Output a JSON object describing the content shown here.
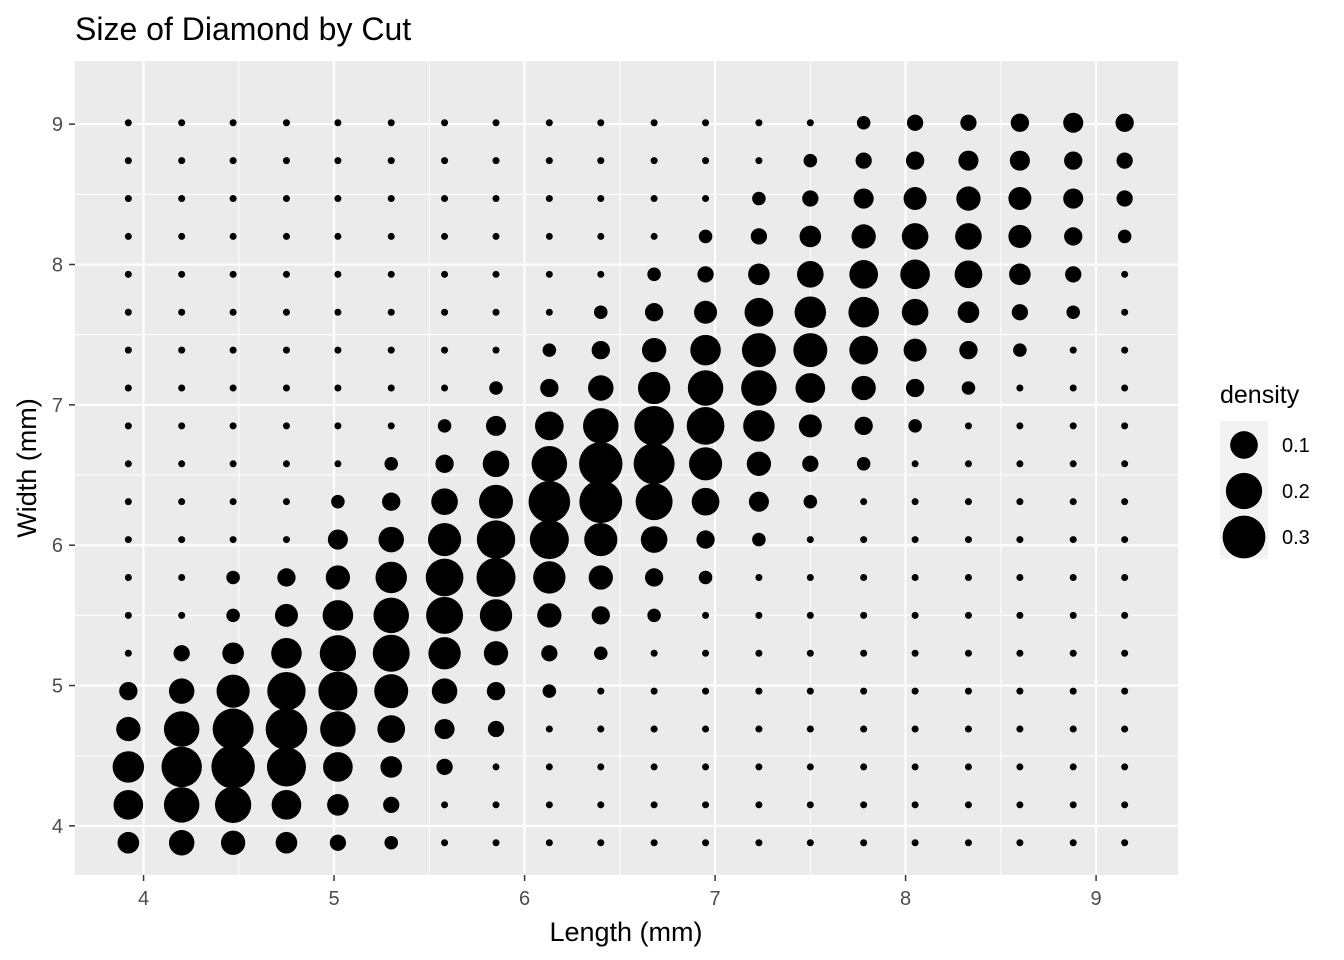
{
  "chart_data": {
    "type": "scatter",
    "title": "Size of Diamond by Cut",
    "xlabel": "Length (mm)",
    "ylabel": "Width (mm)",
    "xlim": [
      3.64,
      9.43
    ],
    "ylim": [
      3.65,
      9.45
    ],
    "x_ticks": [
      4,
      5,
      6,
      7,
      8,
      9
    ],
    "y_ticks": [
      4,
      5,
      6,
      7,
      8,
      9
    ],
    "grid": true,
    "legend": {
      "title": "density",
      "position": "right",
      "entries": [
        {
          "label": "0.1",
          "value": 0.1
        },
        {
          "label": "0.2",
          "value": 0.2
        },
        {
          "label": "0.3",
          "value": 0.3
        }
      ]
    },
    "point_color": "#000000",
    "panel_color": "#ebebeb",
    "x_values": [
      3.92,
      4.2,
      4.47,
      4.75,
      5.02,
      5.3,
      5.58,
      5.85,
      6.13,
      6.4,
      6.68,
      6.95,
      7.23,
      7.5,
      7.78,
      8.05,
      8.33,
      8.6,
      8.88,
      9.15
    ],
    "y_values": [
      3.88,
      4.15,
      4.42,
      4.69,
      4.96,
      5.23,
      5.5,
      5.77,
      6.04,
      6.31,
      6.58,
      6.85,
      7.12,
      7.39,
      7.66,
      7.93,
      8.2,
      8.47,
      8.74,
      9.01
    ],
    "density_grid_note_rows_are_y_values_from_lowest": true,
    "density": [
      [
        0.05,
        0.08,
        0.07,
        0.05,
        0.02,
        0.01,
        0,
        0,
        0,
        0,
        0,
        0,
        0,
        0,
        0,
        0,
        0,
        0,
        0,
        0
      ],
      [
        0.12,
        0.19,
        0.2,
        0.12,
        0.05,
        0.02,
        0,
        0,
        0,
        0,
        0,
        0,
        0,
        0,
        0,
        0,
        0,
        0,
        0,
        0
      ],
      [
        0.14,
        0.26,
        0.31,
        0.24,
        0.12,
        0.05,
        0.02,
        0,
        0,
        0,
        0,
        0,
        0,
        0,
        0,
        0,
        0,
        0,
        0,
        0
      ],
      [
        0.07,
        0.19,
        0.27,
        0.28,
        0.19,
        0.1,
        0.04,
        0.02,
        0,
        0,
        0,
        0,
        0,
        0,
        0,
        0,
        0,
        0,
        0,
        0
      ],
      [
        0.03,
        0.08,
        0.16,
        0.23,
        0.24,
        0.17,
        0.08,
        0.03,
        0.01,
        0,
        0,
        0,
        0,
        0,
        0,
        0,
        0,
        0,
        0,
        0
      ],
      [
        0,
        0.02,
        0.05,
        0.13,
        0.2,
        0.21,
        0.15,
        0.07,
        0.02,
        0.01,
        0,
        0,
        0,
        0,
        0,
        0,
        0,
        0,
        0,
        0
      ],
      [
        0,
        0,
        0.01,
        0.06,
        0.13,
        0.19,
        0.21,
        0.15,
        0.07,
        0.03,
        0.01,
        0,
        0,
        0,
        0,
        0,
        0,
        0,
        0,
        0
      ],
      [
        0,
        0,
        0.01,
        0.03,
        0.07,
        0.14,
        0.22,
        0.24,
        0.15,
        0.07,
        0.03,
        0.01,
        0,
        0,
        0,
        0,
        0,
        0,
        0,
        0
      ],
      [
        0,
        0,
        0,
        0,
        0.04,
        0.08,
        0.16,
        0.23,
        0.24,
        0.16,
        0.09,
        0.03,
        0.01,
        0,
        0,
        0,
        0,
        0,
        0,
        0
      ],
      [
        0,
        0,
        0,
        0,
        0.01,
        0.03,
        0.09,
        0.17,
        0.28,
        0.3,
        0.21,
        0.1,
        0.04,
        0.01,
        0,
        0,
        0,
        0,
        0,
        0
      ],
      [
        0,
        0,
        0,
        0,
        0,
        0.01,
        0.03,
        0.09,
        0.19,
        0.31,
        0.27,
        0.16,
        0.07,
        0.02,
        0.01,
        0,
        0,
        0,
        0,
        0
      ],
      [
        0,
        0,
        0,
        0,
        0,
        0,
        0.01,
        0.04,
        0.11,
        0.19,
        0.25,
        0.22,
        0.14,
        0.06,
        0.03,
        0.01,
        0,
        0,
        0,
        0
      ],
      [
        0,
        0,
        0,
        0,
        0,
        0,
        0,
        0.01,
        0.03,
        0.08,
        0.15,
        0.19,
        0.19,
        0.12,
        0.07,
        0.03,
        0.01,
        0,
        0,
        0
      ],
      [
        0,
        0,
        0,
        0,
        0,
        0,
        0,
        0,
        0.01,
        0.03,
        0.07,
        0.13,
        0.17,
        0.17,
        0.11,
        0.06,
        0.03,
        0.01,
        0,
        0
      ],
      [
        0,
        0,
        0,
        0,
        0,
        0,
        0,
        0,
        0,
        0.01,
        0.03,
        0.06,
        0.11,
        0.14,
        0.13,
        0.09,
        0.05,
        0.02,
        0.01,
        0
      ],
      [
        0,
        0,
        0,
        0,
        0,
        0,
        0,
        0,
        0,
        0,
        0.01,
        0.02,
        0.05,
        0.09,
        0.11,
        0.12,
        0.1,
        0.05,
        0.02,
        0
      ],
      [
        0,
        0,
        0,
        0,
        0,
        0,
        0,
        0,
        0,
        0,
        0,
        0.01,
        0.02,
        0.05,
        0.07,
        0.09,
        0.09,
        0.06,
        0.03,
        0.01
      ],
      [
        0,
        0,
        0,
        0,
        0,
        0,
        0,
        0,
        0,
        0,
        0,
        0,
        0.01,
        0.02,
        0.04,
        0.06,
        0.07,
        0.06,
        0.04,
        0.02
      ],
      [
        0,
        0,
        0,
        0,
        0,
        0,
        0,
        0,
        0,
        0,
        0,
        0,
        0,
        0.01,
        0.02,
        0.03,
        0.04,
        0.04,
        0.03,
        0.02
      ],
      [
        0,
        0,
        0,
        0,
        0,
        0,
        0,
        0,
        0,
        0,
        0,
        0,
        0,
        0,
        0.01,
        0.02,
        0.02,
        0.03,
        0.04,
        0.03
      ]
    ]
  }
}
